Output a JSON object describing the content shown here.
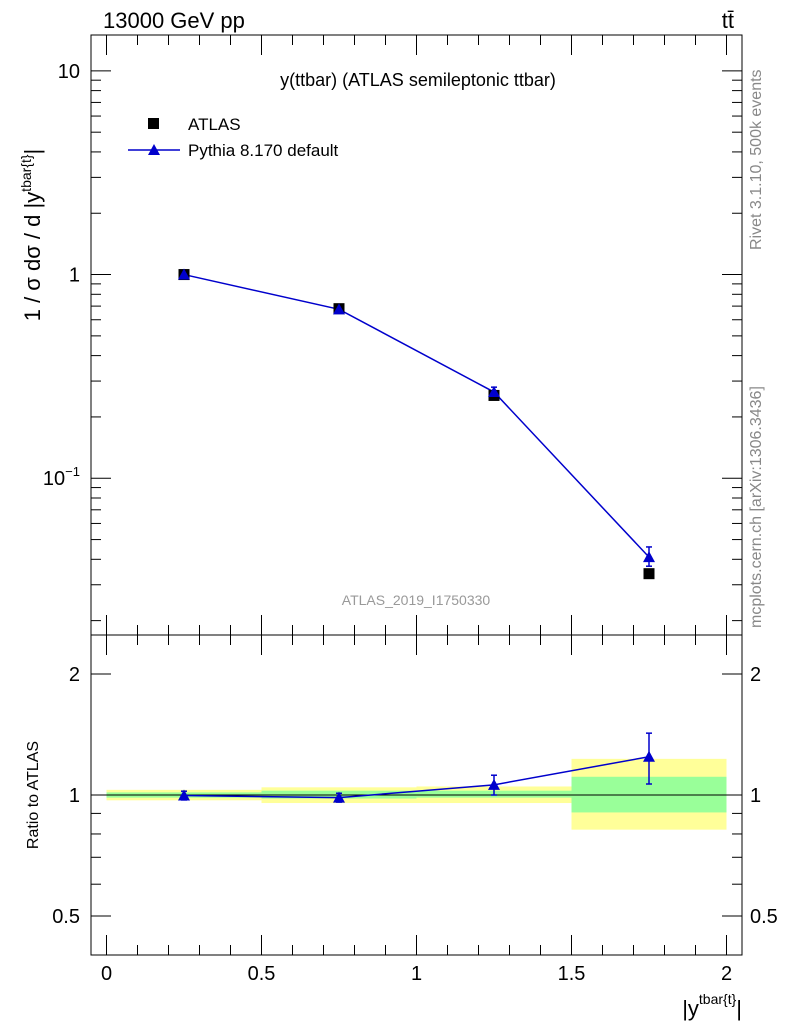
{
  "header": {
    "left": "13000 GeV pp",
    "right": "tt̄"
  },
  "side": {
    "rivet": "Rivet 3.1.10,  500k events",
    "mcplots": "mcplots.cern.ch [arXiv:1306.3436]"
  },
  "chart_data": [
    {
      "type": "scatter",
      "title": "y(ttbar) (ATLAS semileptonic ttbar)",
      "watermark": "ATLAS_2019_I1750330",
      "ylabel": "1 / σ dσ / d |y^{tbar{t}}|",
      "yscale": "log",
      "ylim": [
        0.017,
        15
      ],
      "xlim": [
        -0.05,
        2.05
      ],
      "legend_position": "top-left",
      "y_tick_labels": [
        "10",
        "1",
        "10⁻¹"
      ],
      "series": [
        {
          "name": "ATLAS",
          "color": "#000000",
          "marker": "square",
          "x": [
            0.25,
            0.75,
            1.25,
            1.75
          ],
          "y": [
            1.0,
            0.68,
            0.255,
            0.034
          ]
        },
        {
          "name": "Pythia 8.170 default",
          "color": "#0000cc",
          "marker": "triangle",
          "x": [
            0.25,
            0.75,
            1.25,
            1.75
          ],
          "y": [
            1.0,
            0.675,
            0.265,
            0.041
          ],
          "yerr_low": [
            0.01,
            0.01,
            0.015,
            0.004
          ],
          "yerr_high": [
            0.01,
            0.01,
            0.015,
            0.005
          ]
        }
      ]
    },
    {
      "type": "scatter",
      "xlabel": "|y^{tbar{t}}|",
      "ylabel": "Ratio to ATLAS",
      "yscale": "log",
      "ylim": [
        0.4,
        2.5
      ],
      "xlim": [
        -0.05,
        2.05
      ],
      "x_tick_labels": [
        "0",
        "0.5",
        "1",
        "1.5",
        "2"
      ],
      "y_tick_labels": [
        "0.5",
        "1",
        "2"
      ],
      "bands": [
        {
          "x0": 0.0,
          "x1": 0.5,
          "inner": [
            0.985,
            1.015
          ],
          "outer": [
            0.97,
            1.03
          ]
        },
        {
          "x0": 0.5,
          "x1": 1.0,
          "inner": [
            0.98,
            1.025
          ],
          "outer": [
            0.955,
            1.045
          ]
        },
        {
          "x0": 1.0,
          "x1": 1.5,
          "inner": [
            0.985,
            1.025
          ],
          "outer": [
            0.955,
            1.05
          ]
        },
        {
          "x0": 1.5,
          "x1": 2.0,
          "inner": [
            0.905,
            1.11
          ],
          "outer": [
            0.82,
            1.23
          ]
        }
      ],
      "series": [
        {
          "name": "Pythia 8.170 default",
          "color": "#0000cc",
          "x": [
            0.25,
            0.75,
            1.25,
            1.75
          ],
          "y": [
            0.997,
            0.985,
            1.06,
            1.245
          ],
          "yerr_low": [
            0.025,
            0.025,
            0.06,
            0.18
          ],
          "yerr_high": [
            0.025,
            0.025,
            0.06,
            0.18
          ]
        }
      ]
    }
  ]
}
